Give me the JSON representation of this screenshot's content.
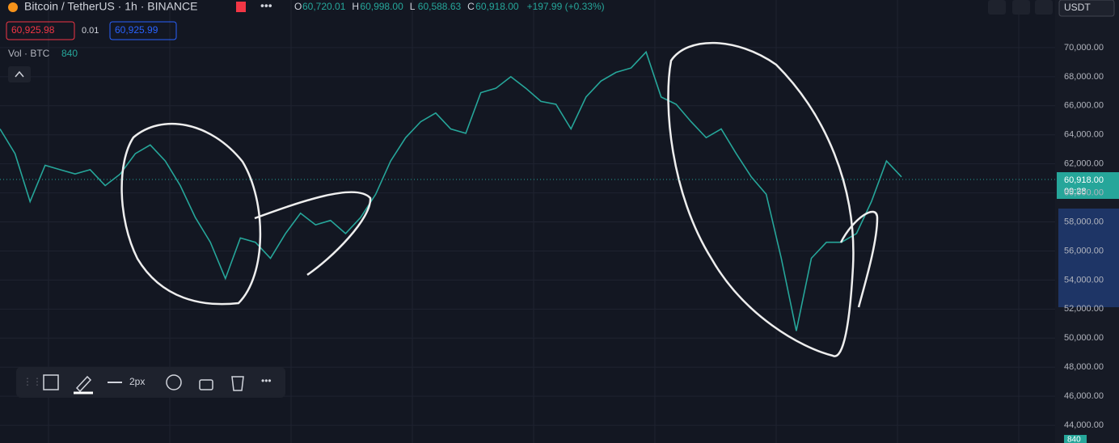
{
  "header": {
    "symbol": "Bitcoin / TetherUS · 1h · BINANCE",
    "ohlc": [
      {
        "label": "O",
        "value": "60,720.01"
      },
      {
        "label": "H",
        "value": "60,998.00"
      },
      {
        "label": "L",
        "value": "60,588.63"
      },
      {
        "label": "C",
        "value": "60,918.00"
      }
    ],
    "change": "+197.99 (+0.33%)",
    "currency": "USDT"
  },
  "quote": {
    "bid": "60,925.98",
    "spread": "0.01",
    "ask": "60,925.99"
  },
  "volume": {
    "label": "Vol · BTC",
    "value": "840"
  },
  "price_tag": {
    "price": "60,918.00",
    "countdown": "09:28"
  },
  "toolbar": {
    "stroke": "2px"
  },
  "volume_badge": "840",
  "chart_data": {
    "type": "line",
    "color": "#26a69a",
    "grid": true,
    "ylim": [
      42780,
      73280
    ],
    "yticks": [
      {
        "value": 44000,
        "label": "44,000.00"
      },
      {
        "value": 46000,
        "label": "46,000.00"
      },
      {
        "value": 48000,
        "label": "48,000.00"
      },
      {
        "value": 50000,
        "label": "50,000.00"
      },
      {
        "value": 52000,
        "label": "52,000.00"
      },
      {
        "value": 54000,
        "label": "54,000.00"
      },
      {
        "value": 56000,
        "label": "56,000.00"
      },
      {
        "value": 58000,
        "label": "58,000.00"
      },
      {
        "value": 60000,
        "label": "60,000.00"
      },
      {
        "value": 62000,
        "label": "62,000.00"
      },
      {
        "value": 64000,
        "label": "64,000.00"
      },
      {
        "value": 66000,
        "label": "66,000.00"
      },
      {
        "value": 68000,
        "label": "68,000.00"
      },
      {
        "value": 70000,
        "label": "70,000.00"
      }
    ],
    "values": [
      64400,
      62700,
      59400,
      61900,
      61600,
      61300,
      61600,
      60500,
      61300,
      62700,
      63300,
      62200,
      60500,
      58300,
      56600,
      54100,
      56900,
      56600,
      55500,
      57200,
      58600,
      57800,
      58100,
      57200,
      58300,
      59900,
      62200,
      63800,
      64900,
      65500,
      64400,
      64100,
      66900,
      67200,
      68000,
      67200,
      66300,
      66100,
      64400,
      66600,
      67700,
      68300,
      68600,
      69700,
      66600,
      66100,
      64900,
      63800,
      64400,
      62700,
      61100,
      59900,
      55500,
      50500,
      55500,
      56600,
      56600,
      57200,
      59400,
      62200,
      61100
    ]
  }
}
